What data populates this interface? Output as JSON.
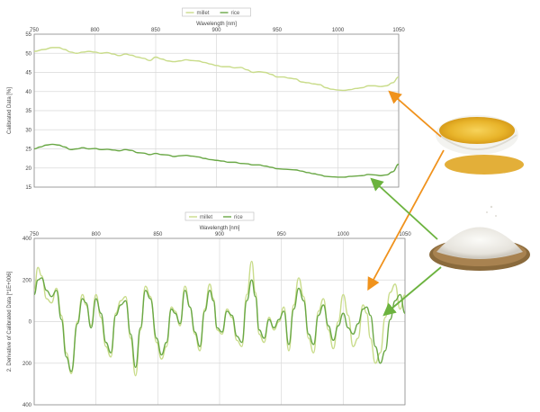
{
  "colors": {
    "millet": "#c9dc8a",
    "rice": "#6aa846",
    "millet_arrow": "#f0921c",
    "rice_arrow": "#6cb33f",
    "grid": "#d9d9d9",
    "axis": "#8c8c8c"
  },
  "images": {
    "millet_photo": "millet-bowl-photo",
    "rice_photo": "rice-basket-photo"
  },
  "chart_data": [
    {
      "type": "line",
      "legend": [
        "millet",
        "rice"
      ],
      "legend_position": "top-center",
      "xlabel": "Wavelength [nm]",
      "ylabel": "Calibrated Data [%]",
      "xlim": [
        750,
        1050
      ],
      "ylim": [
        15,
        55
      ],
      "xticks": [
        750,
        800,
        850,
        900,
        950,
        1000,
        1050
      ],
      "yticks": [
        15,
        20,
        25,
        30,
        35,
        40,
        45,
        50,
        55
      ],
      "grid": true,
      "series": [
        {
          "name": "millet",
          "x": [
            750,
            758,
            765,
            770,
            775,
            780,
            785,
            790,
            795,
            800,
            805,
            810,
            815,
            820,
            825,
            830,
            835,
            840,
            845,
            850,
            855,
            860,
            865,
            870,
            875,
            880,
            885,
            890,
            895,
            900,
            905,
            910,
            915,
            920,
            925,
            930,
            935,
            940,
            945,
            950,
            955,
            960,
            965,
            970,
            975,
            980,
            985,
            990,
            995,
            1000,
            1005,
            1010,
            1015,
            1020,
            1025,
            1030,
            1035,
            1040,
            1045,
            1050
          ],
          "y": [
            50.5,
            51.0,
            51.5,
            51.5,
            51.0,
            50.3,
            50.0,
            50.3,
            50.5,
            50.3,
            50.0,
            50.2,
            49.8,
            49.4,
            49.8,
            49.5,
            49.0,
            48.7,
            48.1,
            49.0,
            48.5,
            48.0,
            47.8,
            48.0,
            48.3,
            48.1,
            48.0,
            47.6,
            47.2,
            46.8,
            46.5,
            46.5,
            46.2,
            46.3,
            45.7,
            45.0,
            45.2,
            45.0,
            44.5,
            43.8,
            43.8,
            43.5,
            43.3,
            42.5,
            42.3,
            42.0,
            41.8,
            41.0,
            40.6,
            40.4,
            40.3,
            40.5,
            40.8,
            41.0,
            41.5,
            41.5,
            41.3,
            41.5,
            42.3,
            43.8
          ]
        },
        {
          "name": "rice",
          "x": [
            750,
            755,
            760,
            765,
            770,
            775,
            780,
            785,
            790,
            795,
            800,
            805,
            810,
            815,
            820,
            825,
            830,
            835,
            840,
            845,
            850,
            855,
            860,
            865,
            870,
            875,
            880,
            885,
            890,
            895,
            900,
            905,
            910,
            915,
            920,
            925,
            930,
            935,
            940,
            945,
            950,
            955,
            960,
            965,
            970,
            975,
            980,
            985,
            990,
            995,
            1000,
            1005,
            1010,
            1015,
            1020,
            1025,
            1030,
            1035,
            1040,
            1045,
            1050
          ],
          "y": [
            25.0,
            25.5,
            26.0,
            26.2,
            26.0,
            25.5,
            24.8,
            25.0,
            25.3,
            25.0,
            25.1,
            24.8,
            24.9,
            24.7,
            24.5,
            24.8,
            24.6,
            24.0,
            23.9,
            23.5,
            23.8,
            23.5,
            23.4,
            23.0,
            23.2,
            23.3,
            23.1,
            22.9,
            22.5,
            22.2,
            22.0,
            21.8,
            21.5,
            21.5,
            21.2,
            21.1,
            20.8,
            20.8,
            20.5,
            20.2,
            19.8,
            19.7,
            19.6,
            19.5,
            19.2,
            18.8,
            18.5,
            18.2,
            17.8,
            17.7,
            17.6,
            17.6,
            17.8,
            17.9,
            18.0,
            18.3,
            18.2,
            18.0,
            18.2,
            19.0,
            21.0
          ]
        }
      ]
    },
    {
      "type": "line",
      "legend": [
        "millet",
        "rice"
      ],
      "legend_position": "top-center",
      "xlabel": "Wavelength [nm]",
      "ylabel": "2. Derivative of Calibrated Data [*1E+006]",
      "xlim": [
        750,
        1050
      ],
      "ylim": [
        -400,
        400
      ],
      "xticks": [
        750,
        800,
        850,
        900,
        950,
        1000,
        1050
      ],
      "yticks": [
        -400,
        -200,
        0,
        200,
        400
      ],
      "ytick_labels": [
        "400",
        "200",
        "0",
        "200",
        "400"
      ],
      "grid": true,
      "series": [
        {
          "name": "millet",
          "x": [
            750,
            753,
            756,
            760,
            764,
            768,
            772,
            776,
            780,
            785,
            789,
            792,
            796,
            800,
            804,
            808,
            812,
            816,
            820,
            824,
            828,
            832,
            836,
            840,
            844,
            849,
            853,
            857,
            861,
            864,
            868,
            872,
            876,
            880,
            884,
            888,
            892,
            895,
            898,
            902,
            906,
            910,
            914,
            918,
            922,
            926,
            929,
            932,
            936,
            940,
            944,
            948,
            952,
            956,
            960,
            964,
            968,
            972,
            976,
            980,
            984,
            988,
            992,
            996,
            1000,
            1004,
            1008,
            1012,
            1016,
            1019,
            1022,
            1026,
            1030,
            1034,
            1038,
            1042,
            1046,
            1050
          ],
          "y": [
            150,
            260,
            220,
            110,
            90,
            160,
            30,
            -150,
            -250,
            0,
            130,
            80,
            -20,
            130,
            20,
            -120,
            -170,
            40,
            100,
            120,
            -80,
            -260,
            -40,
            170,
            120,
            -100,
            -180,
            -120,
            70,
            50,
            -20,
            170,
            70,
            -60,
            -140,
            60,
            180,
            110,
            -40,
            -60,
            60,
            20,
            -90,
            -120,
            130,
            290,
            140,
            -60,
            -100,
            20,
            -40,
            0,
            70,
            -140,
            80,
            210,
            120,
            -80,
            -150,
            50,
            110,
            -40,
            -130,
            0,
            130,
            30,
            -120,
            -80,
            80,
            40,
            -80,
            -200,
            -150,
            20,
            140,
            180,
            60,
            130
          ]
        },
        {
          "name": "rice",
          "x": [
            750,
            753,
            756,
            760,
            764,
            768,
            772,
            776,
            780,
            785,
            789,
            792,
            796,
            800,
            804,
            808,
            812,
            816,
            820,
            824,
            828,
            832,
            836,
            840,
            844,
            849,
            853,
            857,
            861,
            864,
            868,
            872,
            876,
            880,
            884,
            888,
            892,
            895,
            898,
            902,
            906,
            910,
            914,
            918,
            922,
            926,
            929,
            932,
            936,
            940,
            944,
            948,
            952,
            956,
            960,
            964,
            968,
            972,
            976,
            980,
            984,
            988,
            992,
            996,
            1000,
            1004,
            1008,
            1012,
            1016,
            1019,
            1022,
            1026,
            1030,
            1034,
            1038,
            1042,
            1046,
            1050
          ],
          "y": [
            130,
            200,
            210,
            150,
            120,
            150,
            10,
            -170,
            -240,
            -10,
            110,
            90,
            -30,
            110,
            40,
            -100,
            -150,
            30,
            80,
            100,
            -60,
            -220,
            -30,
            150,
            110,
            -80,
            -160,
            -100,
            60,
            40,
            -10,
            150,
            70,
            -50,
            -120,
            50,
            150,
            100,
            -30,
            -50,
            50,
            30,
            -70,
            -100,
            100,
            200,
            120,
            -40,
            -80,
            10,
            -30,
            10,
            50,
            -110,
            60,
            160,
            100,
            -60,
            -110,
            30,
            80,
            -20,
            -90,
            -20,
            40,
            -30,
            -60,
            -10,
            60,
            70,
            30,
            -120,
            -200,
            -140,
            10,
            100,
            130,
            40
          ]
        }
      ]
    }
  ]
}
